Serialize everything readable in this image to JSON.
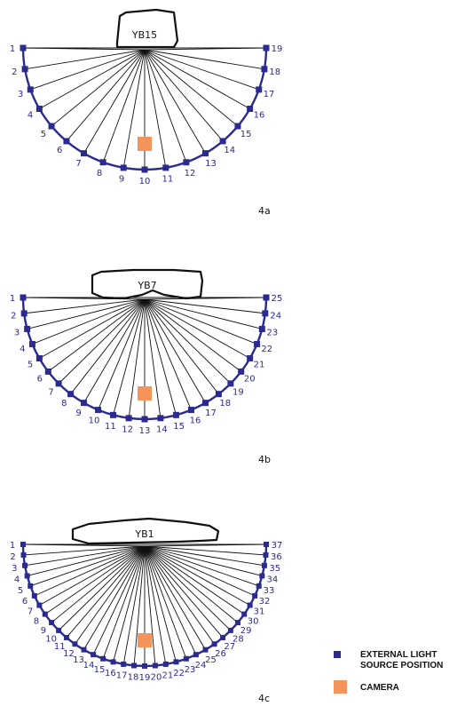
{
  "diagrams": [
    {
      "id": "4a",
      "figure_label": "4a",
      "object_label": "YB15",
      "source_count": 19
    },
    {
      "id": "4b",
      "figure_label": "4b",
      "object_label": "YB7",
      "source_count": 25
    },
    {
      "id": "4c",
      "figure_label": "4c",
      "object_label": "YB1",
      "source_count": 37
    }
  ],
  "legend": {
    "light_source": "EXTERNAL LIGHT\nSOURCE POSITION",
    "camera": "CAMERA"
  },
  "colors": {
    "light_source": "#2b2b8f",
    "camera": "#f4945a",
    "rays": "#111111"
  }
}
